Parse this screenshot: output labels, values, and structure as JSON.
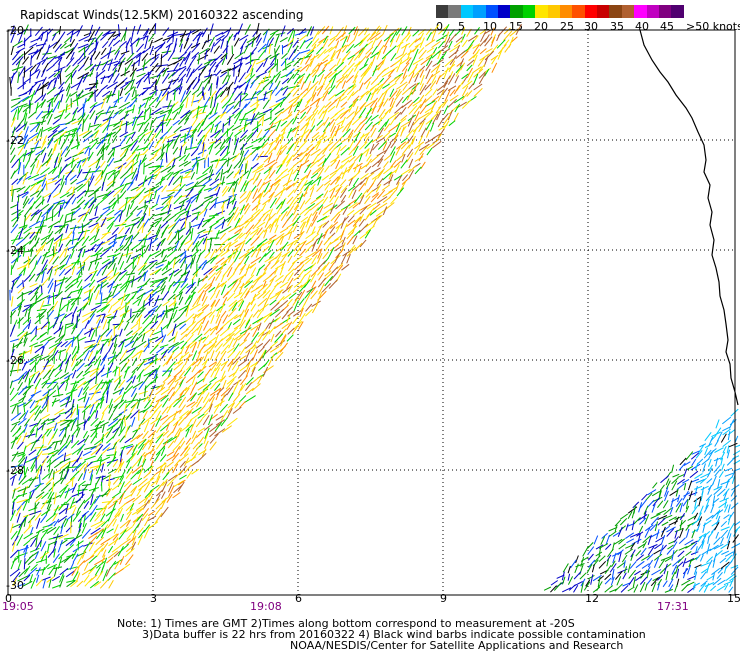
{
  "title": "Rapidscat Winds(12.5KM) 20160322 ascending",
  "legend": {
    "colors": [
      "#3c3c3c",
      "#7a7a7a",
      "#00c8ff",
      "#00a0ff",
      "#0050ff",
      "#0000c8",
      "#00a000",
      "#00d200",
      "#ffe600",
      "#ffc800",
      "#ff8c00",
      "#ff5000",
      "#ff0000",
      "#c80000",
      "#8b4513",
      "#b06030",
      "#ff00ff",
      "#c000c0",
      "#800080",
      "#500070"
    ],
    "ticks": [
      "0",
      "5",
      "10",
      "15",
      "20",
      "25",
      "30",
      "35",
      "40",
      "45",
      ">50 knots"
    ]
  },
  "axes": {
    "lat_labels": [
      "-20",
      "-22",
      "-24",
      "-26",
      "-28",
      "-30"
    ],
    "lon_labels": [
      "0",
      "3",
      "6",
      "9",
      "12",
      "15"
    ]
  },
  "times": [
    "19:05",
    "19:08",
    "17:31"
  ],
  "notes": [
    "Note: 1) Times are GMT 2)Times along bottom correspond to measurement at -20S",
    "3)Data buffer is 22 hrs from 20160322 4) Black wind barbs indicate possible contamination",
    "NOAA/NESDIS/Center for Satellite Applications and Research"
  ]
}
